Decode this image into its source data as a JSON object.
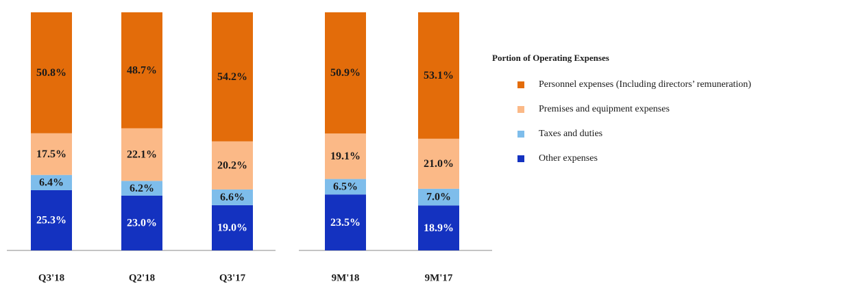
{
  "chart_data": {
    "type": "stacked_bar",
    "legend_title": "Portion of Operating Expenses",
    "categories": [
      "Q3'18",
      "Q2'18",
      "Q3'17",
      "9M'18",
      "9M'17"
    ],
    "ylim": [
      0,
      100
    ],
    "series": [
      {
        "name": "Personnel expenses (Including directors’ remuneration)",
        "color": "#e36c0a",
        "values": [
          50.8,
          48.7,
          54.2,
          50.9,
          53.1
        ],
        "value_labels": [
          "50.8%",
          "48.7%",
          "54.2%",
          "50.9%",
          "53.1%"
        ]
      },
      {
        "name": "Premises and equipment expenses",
        "color": "#fbb987",
        "values": [
          17.5,
          22.1,
          20.2,
          19.1,
          21.0
        ],
        "value_labels": [
          "17.5%",
          "22.1%",
          "20.2%",
          "19.1%",
          "21.0%"
        ]
      },
      {
        "name": "Taxes and duties",
        "color": "#7ebdeb",
        "values": [
          6.4,
          6.2,
          6.6,
          6.5,
          7.0
        ],
        "value_labels": [
          "6.4%",
          "6.2%",
          "6.6%",
          "6.5%",
          "7.0%"
        ]
      },
      {
        "name": "Other expenses",
        "color": "#1432c0",
        "values": [
          25.3,
          23.0,
          19.0,
          23.5,
          18.9
        ],
        "value_labels": [
          "25.3%",
          "23.0%",
          "19.0%",
          "23.5%",
          "18.9%"
        ]
      }
    ]
  }
}
